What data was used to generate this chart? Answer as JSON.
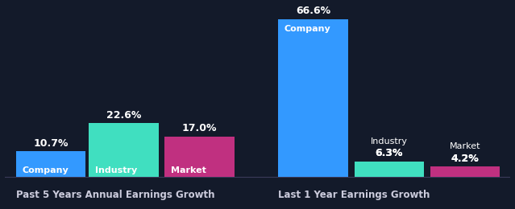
{
  "background_color": "#131a2a",
  "groups": [
    {
      "title": "Past 5 Years Annual Earnings Growth",
      "bars": [
        {
          "label": "Company",
          "value": 10.7,
          "color": "#3399ff"
        },
        {
          "label": "Industry",
          "value": 22.6,
          "color": "#40dfc0"
        },
        {
          "label": "Market",
          "value": 17.0,
          "color": "#c03080"
        }
      ]
    },
    {
      "title": "Last 1 Year Earnings Growth",
      "bars": [
        {
          "label": "Company",
          "value": 66.6,
          "color": "#3399ff"
        },
        {
          "label": "Industry",
          "value": 6.3,
          "color": "#40dfc0"
        },
        {
          "label": "Market",
          "value": 4.2,
          "color": "#c03080"
        }
      ]
    }
  ],
  "text_color": "#ffffff",
  "label_fontsize": 8.0,
  "value_fontsize": 9.0,
  "title_fontsize": 8.5,
  "title_color": "#ccccdd",
  "baseline_color": "#3a3a5a"
}
